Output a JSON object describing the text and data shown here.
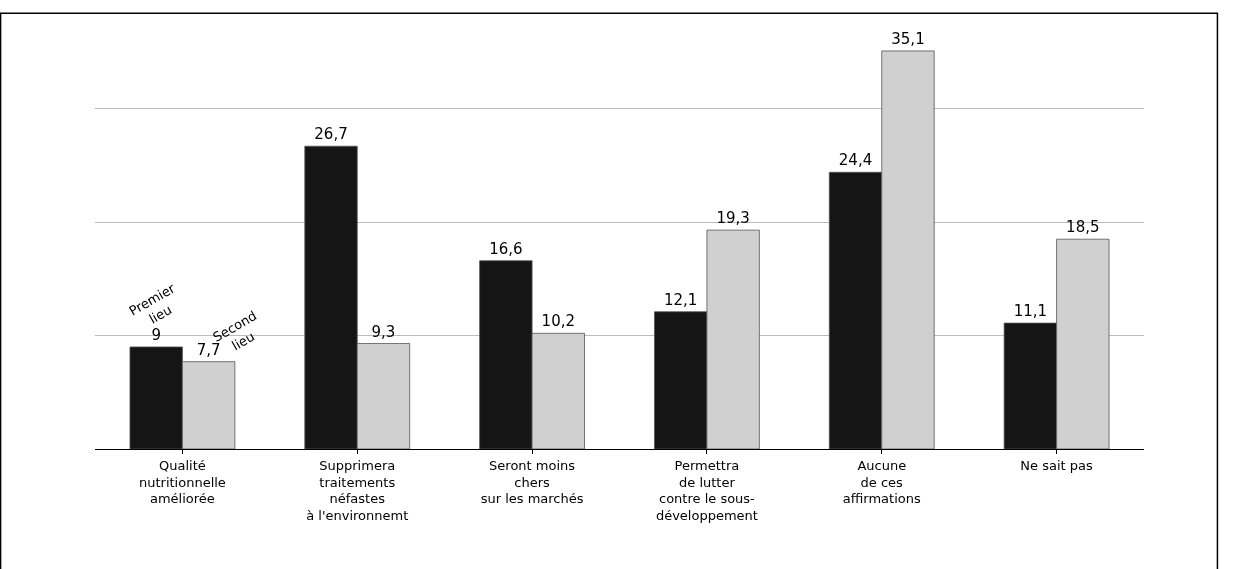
{
  "chart_data": {
    "type": "bar",
    "categories": [
      "Qualité\nnutritionnelle\naméliorée",
      "Supprimera\ntraitements\nnéfastes\nà l'environnemt",
      "Seront moins\nchers\nsur les marchés",
      "Permettra\nde lutter\ncontre le sous-\ndéveloppement",
      "Aucune\nde ces\naffirmations",
      "Ne sait pas"
    ],
    "series": [
      {
        "name": "Premier lieu",
        "color": "#151515",
        "values": [
          9,
          26.7,
          16.6,
          12.1,
          24.4,
          11.1
        ],
        "value_labels": [
          "9",
          "26,7",
          "16,6",
          "12,1",
          "24,4",
          "11,1"
        ]
      },
      {
        "name": "Second lieu",
        "color": "#d0d0d0",
        "values": [
          7.7,
          9.3,
          10.2,
          19.3,
          35.1,
          18.5
        ],
        "value_labels": [
          "7,7",
          "9,3",
          "10,2",
          "19,3",
          "35,1",
          "18,5"
        ]
      }
    ],
    "yticks": [
      {
        "value": 10,
        "label": null
      },
      {
        "value": 20,
        "label": null
      },
      {
        "value": 30,
        "label": null
      }
    ],
    "tick_labels": "x",
    "grid": "y",
    "legend": false
  }
}
